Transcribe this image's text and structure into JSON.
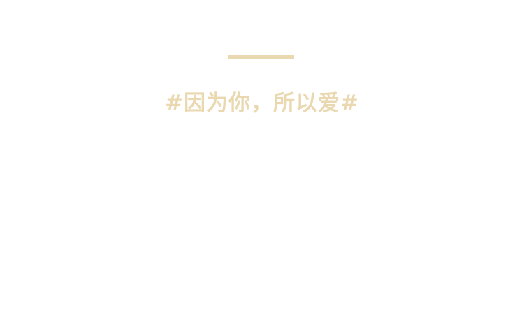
{
  "banner": {
    "tagline": "#因为你，所以爱#",
    "accent_color": "#ead8b0",
    "background_color": "#ffffff"
  }
}
